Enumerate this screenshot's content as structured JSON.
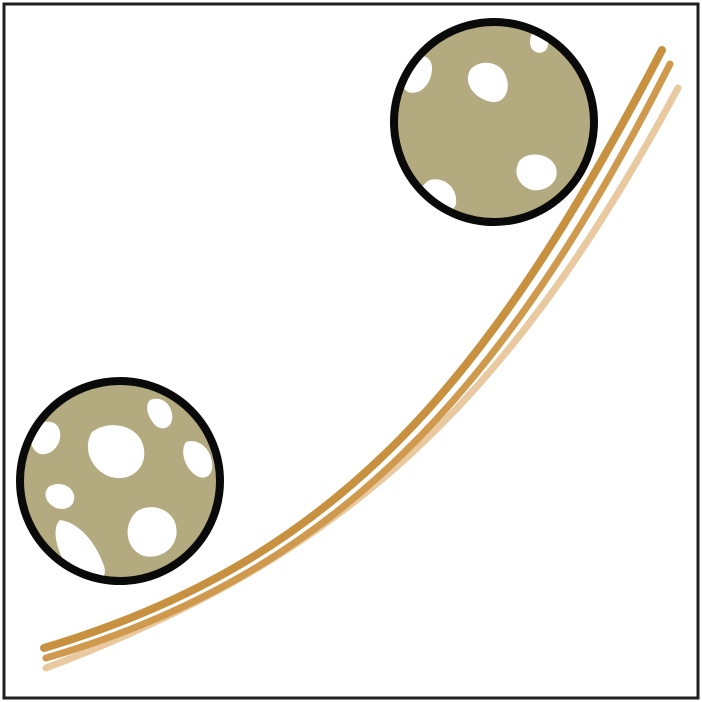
{
  "colors": {
    "background": "#ffffff",
    "frame": "#1f1f1f",
    "circle_outline": "#0a0a0a",
    "circle_fill": "#b3aa80",
    "pore_fill": "#ffffff",
    "curve_dark": "#c8913f",
    "curve_medium": "#cf9a4e",
    "curve_light": "#e9c9a0"
  },
  "icons": {
    "top_circle": "porous-sample-circle-icon",
    "bottom_circle": "porous-sample-circle-icon"
  }
}
